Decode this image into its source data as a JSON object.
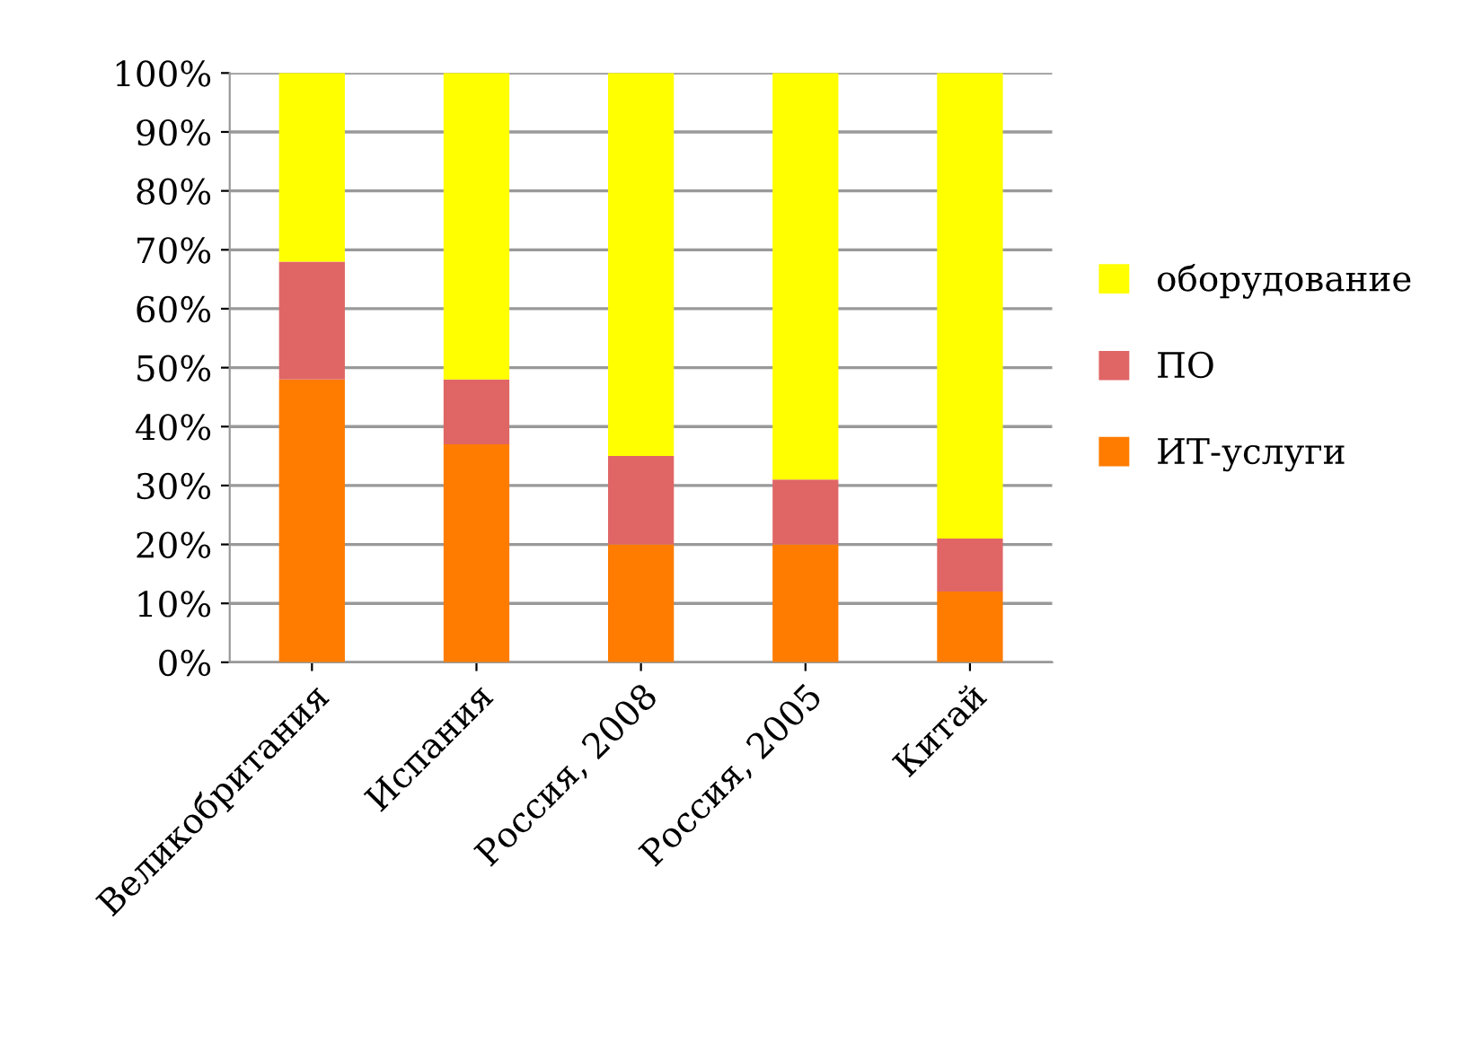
{
  "chart_data": {
    "type": "bar",
    "stacked": true,
    "categories": [
      "Великобритания",
      "Испания",
      "Россия, 2008",
      "Россия, 2005",
      "Китай"
    ],
    "series": [
      {
        "name": "ИТ-услуги",
        "color": "#ff7c00",
        "values": [
          48,
          37,
          20,
          20,
          12
        ]
      },
      {
        "name": "ПО",
        "color": "#e06666",
        "values": [
          20,
          11,
          15,
          11,
          9
        ]
      },
      {
        "name": "оборудование",
        "color": "#ffff00",
        "values": [
          32,
          52,
          65,
          69,
          79
        ]
      }
    ],
    "ylim": [
      0,
      100
    ],
    "yticks": [
      {
        "value": 0,
        "label": "0%"
      },
      {
        "value": 10,
        "label": "10%"
      },
      {
        "value": 20,
        "label": "20%"
      },
      {
        "value": 30,
        "label": "30%"
      },
      {
        "value": 40,
        "label": "40%"
      },
      {
        "value": 50,
        "label": "50%"
      },
      {
        "value": 60,
        "label": "60%"
      },
      {
        "value": 70,
        "label": "70%"
      },
      {
        "value": 80,
        "label": "80%"
      },
      {
        "value": 90,
        "label": "90%"
      },
      {
        "value": 100,
        "label": "100%"
      }
    ],
    "grid": "y",
    "legend": "right"
  }
}
